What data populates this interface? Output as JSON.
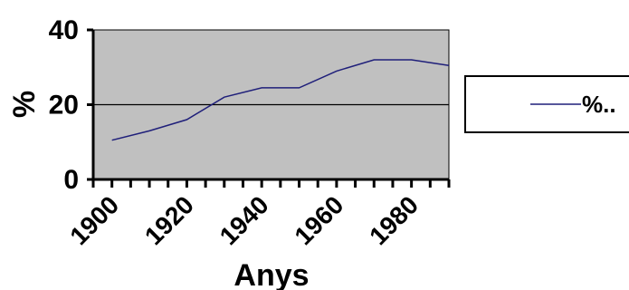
{
  "chart_data": {
    "type": "line",
    "ylabel": "%",
    "xlabel": "Anys",
    "ylim": [
      0,
      40
    ],
    "yticks": [
      "0",
      "20",
      "40"
    ],
    "xticks": [
      "1900",
      "1920",
      "1940",
      "1960",
      "1980"
    ],
    "xlim": [
      1900,
      1995
    ],
    "grid": "horizontal",
    "legend_position": "right",
    "background_color": "#c0c0c0",
    "series": [
      {
        "name": "%..",
        "color": "#1f1f7a",
        "x": [
          1905,
          1915,
          1925,
          1935,
          1945,
          1955,
          1965,
          1975,
          1985,
          1995
        ],
        "y": [
          10.5,
          13,
          16,
          22,
          24.5,
          24.5,
          29,
          32,
          32,
          30.5
        ]
      }
    ]
  }
}
